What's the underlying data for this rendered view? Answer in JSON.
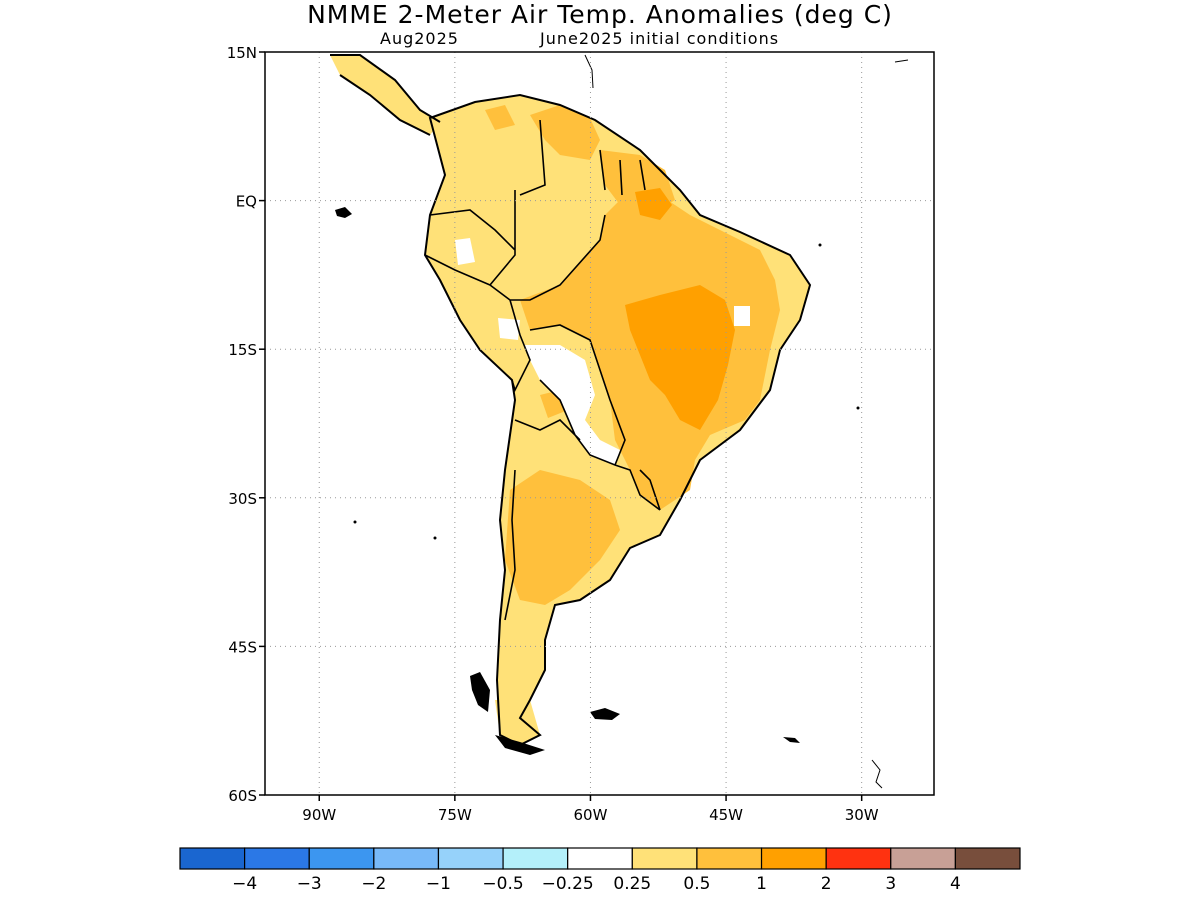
{
  "title": "NMME 2-Meter Air Temp. Anomalies (deg C)",
  "subtitle_left": "Aug2025",
  "subtitle_right": "June2025 initial conditions",
  "map": {
    "lon_range": [
      -96,
      -22
    ],
    "lat_range": [
      -60,
      15
    ],
    "lat_ticks": [
      {
        "value": 15,
        "label": "15N"
      },
      {
        "value": 0,
        "label": "EQ"
      },
      {
        "value": -15,
        "label": "15S"
      },
      {
        "value": -30,
        "label": "30S"
      },
      {
        "value": -45,
        "label": "45S"
      },
      {
        "value": -60,
        "label": "60S"
      }
    ],
    "lon_ticks": [
      {
        "value": -90,
        "label": "90W"
      },
      {
        "value": -75,
        "label": "75W"
      },
      {
        "value": -60,
        "label": "60W"
      },
      {
        "value": -45,
        "label": "45W"
      },
      {
        "value": -30,
        "label": "30W"
      }
    ],
    "grid": "dotted"
  },
  "colorbar": {
    "colors": [
      "#1a66d0",
      "#2b78e6",
      "#3c96f0",
      "#78b9f8",
      "#96d2fa",
      "#b4f0fa",
      "#ffffff",
      "#ffe178",
      "#ffc03c",
      "#ffa000",
      "#ff3210",
      "#c8a096",
      "#784e3c"
    ],
    "labels": [
      "-4",
      "-3",
      "-2",
      "-1",
      "-0.5",
      "-0.25",
      "0.25",
      "0.5",
      "1",
      "2",
      "3",
      "4"
    ]
  }
}
